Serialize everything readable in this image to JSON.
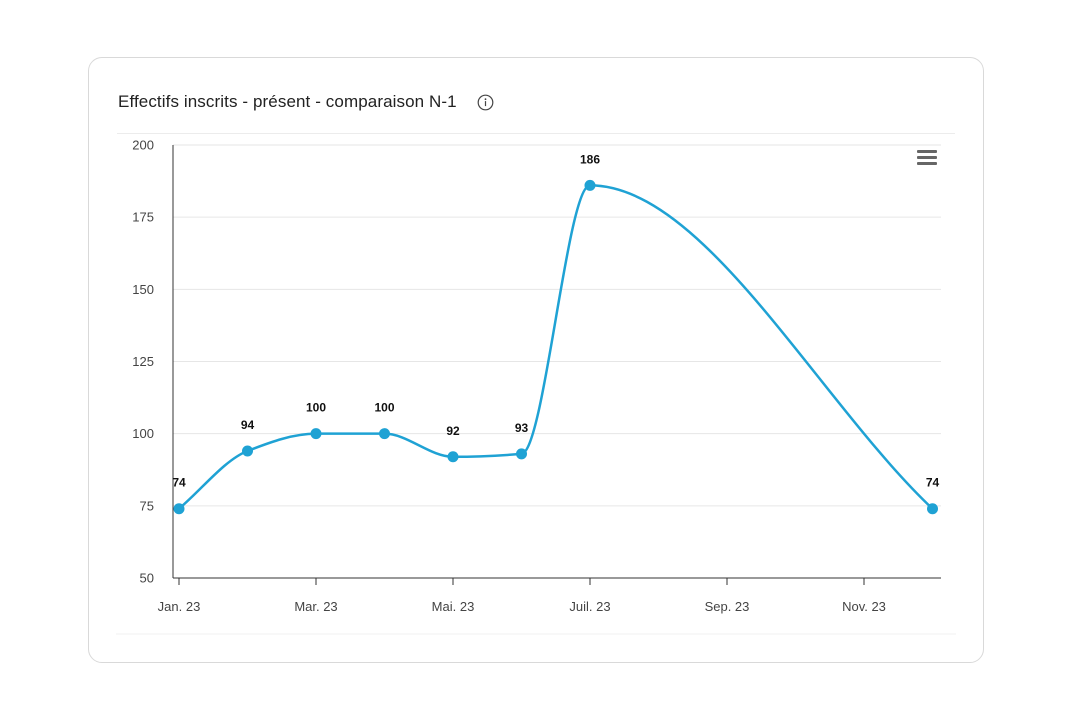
{
  "card": {
    "title": "Effectifs inscrits - présent - comparaison N-1",
    "info_icon": "info-circle-icon",
    "menu_icon": "hamburger-menu-icon"
  },
  "colors": {
    "line": "#1fa2d4",
    "grid": "#e6e6e6",
    "axis": "#333333"
  },
  "chart_data": {
    "type": "line",
    "title": "Effectifs inscrits - présent - comparaison N-1",
    "xlabel": "",
    "ylabel": "",
    "x_tick_labels": [
      "Jan. 23",
      "Mar. 23",
      "Mai. 23",
      "Juil. 23",
      "Sep. 23",
      "Nov. 23"
    ],
    "y_tick_labels": [
      "50",
      "75",
      "100",
      "125",
      "150",
      "175",
      "200"
    ],
    "ylim": [
      50,
      200
    ],
    "xlim": [
      0,
      11.3
    ],
    "grid": true,
    "legend": "none",
    "smooth": true,
    "series": [
      {
        "points": [
          {
            "x": 0,
            "y": 74,
            "label": "74"
          },
          {
            "x": 1,
            "y": 94,
            "label": "94"
          },
          {
            "x": 2,
            "y": 100,
            "label": "100"
          },
          {
            "x": 3,
            "y": 100,
            "label": "100"
          },
          {
            "x": 4,
            "y": 92,
            "label": "92"
          },
          {
            "x": 5,
            "y": 93,
            "label": "93"
          },
          {
            "x": 6,
            "y": 186,
            "label": "186"
          },
          {
            "x": 11,
            "y": 74,
            "label": "74"
          }
        ]
      }
    ]
  }
}
